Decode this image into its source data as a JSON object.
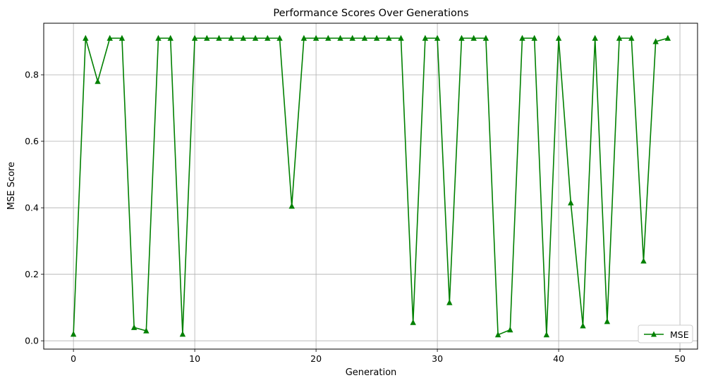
{
  "chart_data": {
    "type": "line",
    "title": "Performance Scores Over Generations",
    "xlabel": "Generation",
    "ylabel": "MSE Score",
    "xlim": [
      -2.45,
      51.45
    ],
    "ylim": [
      -0.025,
      0.955
    ],
    "xticks": [
      0,
      10,
      20,
      30,
      40,
      50
    ],
    "yticks": [
      0.0,
      0.2,
      0.4,
      0.6,
      0.8
    ],
    "ytick_labels": [
      "0.0",
      "0.2",
      "0.4",
      "0.6",
      "0.8"
    ],
    "grid": true,
    "legend_position": "lower-right",
    "series": [
      {
        "name": "MSE",
        "color": "#008000",
        "marker": "triangle-up",
        "x": [
          0,
          1,
          2,
          3,
          4,
          5,
          6,
          7,
          8,
          9,
          10,
          11,
          12,
          13,
          14,
          15,
          16,
          17,
          18,
          19,
          20,
          21,
          22,
          23,
          24,
          25,
          26,
          27,
          28,
          29,
          30,
          31,
          32,
          33,
          34,
          35,
          36,
          37,
          38,
          39,
          40,
          41,
          42,
          43,
          44,
          45,
          46,
          47,
          48,
          49
        ],
        "values": [
          0.02,
          0.91,
          0.78,
          0.91,
          0.91,
          0.04,
          0.03,
          0.91,
          0.91,
          0.02,
          0.91,
          0.91,
          0.91,
          0.91,
          0.91,
          0.91,
          0.91,
          0.91,
          0.405,
          0.91,
          0.91,
          0.91,
          0.91,
          0.91,
          0.91,
          0.91,
          0.91,
          0.91,
          0.055,
          0.91,
          0.91,
          0.115,
          0.91,
          0.91,
          0.91,
          0.018,
          0.033,
          0.91,
          0.91,
          0.018,
          0.91,
          0.415,
          0.045,
          0.91,
          0.058,
          0.91,
          0.91,
          0.24,
          0.9,
          0.91
        ]
      }
    ]
  }
}
